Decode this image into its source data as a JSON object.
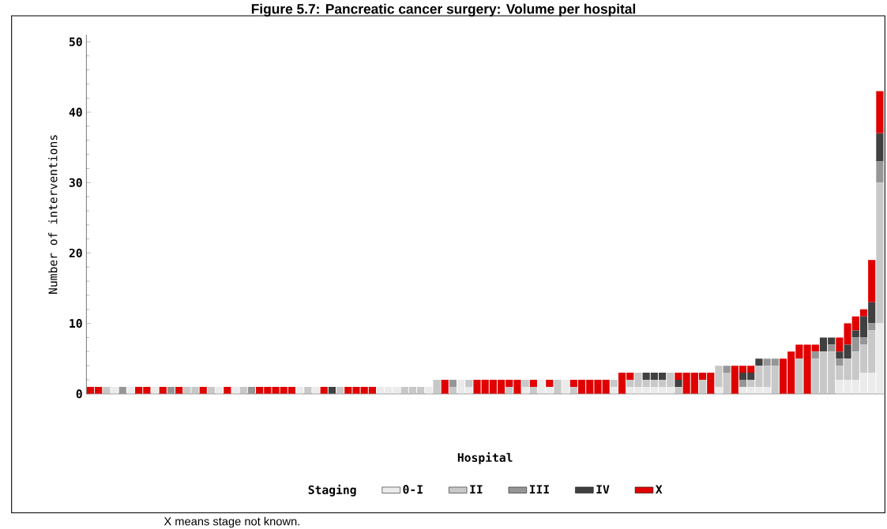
{
  "chart_data": {
    "type": "bar",
    "stacked": true,
    "title": "Figure 5.7: Pancreatic cancer surgery: Volume per hospital",
    "xlabel": "Hospital",
    "ylabel": "Number of interventions",
    "legend_title": "Staging",
    "legend": "bottom",
    "annotations": [
      "X means stage not known."
    ],
    "ylim": [
      0,
      51
    ],
    "yticks": [
      0,
      10,
      20,
      30,
      40,
      50
    ],
    "categories": [
      null,
      null,
      null,
      null,
      null,
      null,
      null,
      null,
      null,
      null,
      null,
      null,
      null,
      null,
      null,
      null,
      null,
      null,
      null,
      null,
      null,
      null,
      null,
      null,
      null,
      null,
      null,
      null,
      null,
      null,
      null,
      null,
      null,
      null,
      null,
      null,
      null,
      null,
      null,
      null,
      null,
      null,
      null,
      null,
      null,
      null,
      null,
      null,
      null,
      null,
      null,
      null,
      null,
      null,
      null,
      null,
      null,
      null,
      null,
      null,
      null,
      null,
      null,
      null,
      null,
      null,
      null,
      null,
      null,
      null,
      null,
      null,
      null,
      null,
      null,
      null,
      null,
      null,
      null,
      null,
      null,
      null,
      null,
      null,
      null,
      null,
      null,
      null,
      null,
      null,
      null,
      null,
      null,
      null,
      null,
      null,
      null,
      null,
      null
    ],
    "series": [
      {
        "name": "0-I",
        "color": "#ebebeb",
        "values": [
          0,
          0,
          0,
          1,
          0,
          1,
          0,
          0,
          1,
          0,
          0,
          0,
          0,
          0,
          0,
          0,
          1,
          0,
          1,
          0,
          0,
          0,
          0,
          0,
          0,
          0,
          1,
          0,
          1,
          0,
          0,
          0,
          0,
          0,
          0,
          0,
          1,
          1,
          1,
          0,
          0,
          0,
          1,
          0,
          0,
          0,
          2,
          1,
          0,
          0,
          0,
          0,
          0,
          0,
          1,
          0,
          2,
          1,
          0,
          2,
          0,
          0,
          0,
          0,
          0,
          1,
          0,
          1,
          1,
          1,
          1,
          1,
          1,
          0,
          0,
          0,
          0,
          0,
          1,
          0,
          0,
          1,
          1,
          1,
          1,
          0,
          0,
          0,
          0,
          0,
          0,
          0,
          0,
          2,
          2,
          2,
          3,
          3,
          10
        ]
      },
      {
        "name": "II",
        "color": "#c8c8c8",
        "values": [
          0,
          0,
          1,
          0,
          0,
          0,
          0,
          0,
          0,
          0,
          0,
          0,
          1,
          1,
          0,
          1,
          0,
          0,
          0,
          1,
          0,
          0,
          0,
          0,
          0,
          0,
          0,
          1,
          0,
          0,
          0,
          1,
          0,
          0,
          0,
          0,
          0,
          0,
          0,
          1,
          1,
          1,
          0,
          2,
          0,
          1,
          0,
          1,
          0,
          0,
          0,
          0,
          1,
          0,
          1,
          1,
          0,
          0,
          2,
          0,
          1,
          0,
          0,
          0,
          0,
          1,
          0,
          1,
          2,
          1,
          1,
          1,
          2,
          1,
          0,
          0,
          2,
          0,
          3,
          3,
          0,
          0,
          1,
          3,
          3,
          4,
          0,
          0,
          5,
          0,
          5,
          6,
          6,
          2,
          3,
          4,
          4,
          6,
          20
        ]
      },
      {
        "name": "III",
        "color": "#969696",
        "values": [
          0,
          0,
          0,
          0,
          1,
          0,
          0,
          0,
          0,
          0,
          1,
          0,
          0,
          0,
          0,
          0,
          0,
          0,
          0,
          0,
          1,
          0,
          0,
          0,
          0,
          0,
          0,
          0,
          0,
          0,
          0,
          0,
          0,
          0,
          0,
          0,
          0,
          0,
          0,
          0,
          0,
          0,
          0,
          0,
          0,
          1,
          0,
          0,
          0,
          0,
          0,
          0,
          0,
          0,
          0,
          0,
          0,
          0,
          0,
          0,
          0,
          0,
          0,
          0,
          0,
          0,
          0,
          0,
          0,
          0,
          0,
          0,
          0,
          0,
          0,
          0,
          0,
          0,
          0,
          1,
          0,
          1,
          0,
          0,
          1,
          1,
          0,
          0,
          0,
          0,
          1,
          0,
          1,
          1,
          0,
          2,
          1,
          1,
          3
        ]
      },
      {
        "name": "IV",
        "color": "#404040",
        "values": [
          0,
          0,
          0,
          0,
          0,
          0,
          0,
          0,
          0,
          0,
          0,
          0,
          0,
          0,
          0,
          0,
          0,
          0,
          0,
          0,
          0,
          0,
          0,
          0,
          0,
          0,
          0,
          0,
          0,
          0,
          1,
          0,
          0,
          0,
          0,
          0,
          0,
          0,
          0,
          0,
          0,
          0,
          0,
          0,
          0,
          0,
          0,
          0,
          0,
          0,
          0,
          0,
          0,
          0,
          0,
          0,
          0,
          0,
          0,
          0,
          0,
          0,
          0,
          0,
          0,
          0,
          0,
          0,
          0,
          1,
          1,
          1,
          0,
          1,
          0,
          0,
          0,
          0,
          0,
          0,
          0,
          1,
          1,
          1,
          0,
          0,
          0,
          0,
          0,
          0,
          0,
          2,
          1,
          1,
          2,
          1,
          3,
          3,
          4
        ]
      },
      {
        "name": "X",
        "color": "#e00000",
        "values": [
          1,
          1,
          0,
          0,
          0,
          0,
          1,
          1,
          0,
          1,
          0,
          1,
          0,
          0,
          1,
          0,
          0,
          1,
          0,
          0,
          0,
          1,
          1,
          1,
          1,
          1,
          0,
          0,
          0,
          1,
          0,
          0,
          1,
          1,
          1,
          1,
          0,
          0,
          0,
          0,
          0,
          0,
          0,
          0,
          2,
          0,
          0,
          0,
          2,
          2,
          2,
          2,
          1,
          2,
          0,
          1,
          0,
          1,
          0,
          0,
          1,
          2,
          2,
          2,
          2,
          0,
          3,
          1,
          0,
          0,
          0,
          0,
          0,
          1,
          3,
          3,
          1,
          3,
          0,
          0,
          4,
          1,
          1,
          0,
          0,
          0,
          5,
          6,
          2,
          7,
          1,
          0,
          0,
          2,
          3,
          2,
          1,
          6,
          6
        ]
      }
    ]
  }
}
